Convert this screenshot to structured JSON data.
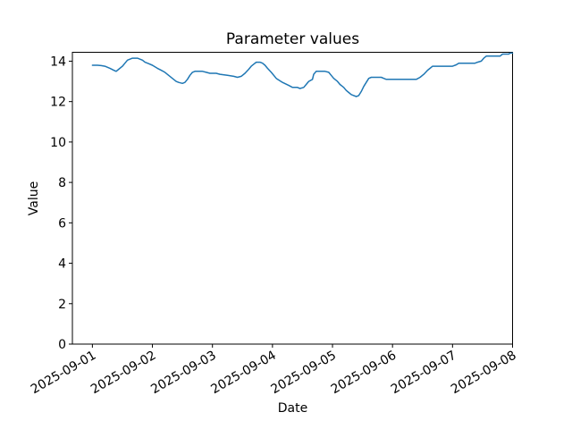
{
  "figure": {
    "title": "Parameter values",
    "xlabel": "Date",
    "ylabel": "Value",
    "background_color": "#ffffff",
    "line_color": "#1f77b4",
    "axis_color": "#000000"
  },
  "chart_data": {
    "type": "line",
    "title": "Parameter values",
    "xlabel": "Date",
    "ylabel": "Value",
    "grid": false,
    "legend": null,
    "x_unit": "hours since 2025-09-01 00:00",
    "xlim_hours": [
      -8,
      168
    ],
    "ylim": [
      0,
      14.44
    ],
    "yticks": [
      0,
      2,
      4,
      6,
      8,
      10,
      12,
      14
    ],
    "xticks": {
      "hours": [
        0,
        24,
        48,
        72,
        96,
        120,
        144,
        168
      ],
      "labels": [
        "2025-09-01",
        "2025-09-02",
        "2025-09-03",
        "2025-09-04",
        "2025-09-05",
        "2025-09-06",
        "2025-09-07",
        "2025-09-08"
      ]
    },
    "series": [
      {
        "name": "Parameter values",
        "color": "#1f77b4",
        "points": [
          [
            0,
            13.8
          ],
          [
            2,
            13.8
          ],
          [
            3.5,
            13.78
          ],
          [
            5,
            13.75
          ],
          [
            7,
            13.65
          ],
          [
            8.5,
            13.55
          ],
          [
            9.5,
            13.5
          ],
          [
            10.5,
            13.6
          ],
          [
            12,
            13.75
          ],
          [
            13,
            13.9
          ],
          [
            14,
            14.05
          ],
          [
            15,
            14.1
          ],
          [
            16,
            14.15
          ],
          [
            18,
            14.15
          ],
          [
            19,
            14.1
          ],
          [
            20,
            14.05
          ],
          [
            21,
            13.95
          ],
          [
            22.5,
            13.88
          ],
          [
            24,
            13.8
          ],
          [
            26,
            13.65
          ],
          [
            27.5,
            13.55
          ],
          [
            29,
            13.45
          ],
          [
            30.5,
            13.3
          ],
          [
            32,
            13.15
          ],
          [
            33.5,
            13.0
          ],
          [
            34.5,
            12.95
          ],
          [
            36,
            12.9
          ],
          [
            37,
            12.95
          ],
          [
            38,
            13.1
          ],
          [
            39,
            13.3
          ],
          [
            40,
            13.45
          ],
          [
            41,
            13.5
          ],
          [
            44,
            13.5
          ],
          [
            45.5,
            13.45
          ],
          [
            47,
            13.4
          ],
          [
            49.5,
            13.4
          ],
          [
            51,
            13.35
          ],
          [
            54,
            13.3
          ],
          [
            56.5,
            13.25
          ],
          [
            58,
            13.2
          ],
          [
            59.5,
            13.25
          ],
          [
            61,
            13.4
          ],
          [
            62.5,
            13.6
          ],
          [
            63.5,
            13.75
          ],
          [
            64.5,
            13.85
          ],
          [
            65.5,
            13.95
          ],
          [
            67,
            13.95
          ],
          [
            68,
            13.9
          ],
          [
            69,
            13.8
          ],
          [
            70,
            13.65
          ],
          [
            71.5,
            13.45
          ],
          [
            73.5,
            13.15
          ],
          [
            76,
            12.95
          ],
          [
            78.5,
            12.8
          ],
          [
            80,
            12.7
          ],
          [
            82,
            12.7
          ],
          [
            83,
            12.65
          ],
          [
            84.5,
            12.7
          ],
          [
            85.5,
            12.85
          ],
          [
            86.5,
            13.0
          ],
          [
            88,
            13.1
          ],
          [
            88.5,
            13.35
          ],
          [
            89.5,
            13.5
          ],
          [
            93,
            13.5
          ],
          [
            94.5,
            13.45
          ],
          [
            95.5,
            13.3
          ],
          [
            96.5,
            13.15
          ],
          [
            98,
            13.0
          ],
          [
            99,
            12.85
          ],
          [
            100.5,
            12.7
          ],
          [
            101.5,
            12.55
          ],
          [
            102.5,
            12.45
          ],
          [
            103.5,
            12.35
          ],
          [
            104.5,
            12.3
          ],
          [
            105.5,
            12.25
          ],
          [
            106.5,
            12.3
          ],
          [
            107.5,
            12.5
          ],
          [
            108.5,
            12.75
          ],
          [
            109.5,
            12.95
          ],
          [
            110.5,
            13.15
          ],
          [
            111.5,
            13.2
          ],
          [
            115.5,
            13.2
          ],
          [
            116.5,
            13.15
          ],
          [
            117.5,
            13.1
          ],
          [
            129.5,
            13.1
          ],
          [
            131,
            13.2
          ],
          [
            132.5,
            13.35
          ],
          [
            134,
            13.55
          ],
          [
            135,
            13.65
          ],
          [
            136,
            13.75
          ],
          [
            144,
            13.75
          ],
          [
            145.5,
            13.82
          ],
          [
            146.5,
            13.9
          ],
          [
            153,
            13.9
          ],
          [
            154,
            13.95
          ],
          [
            155.5,
            14.0
          ],
          [
            156.5,
            14.15
          ],
          [
            157.5,
            14.25
          ],
          [
            163,
            14.25
          ],
          [
            164,
            14.35
          ],
          [
            166.5,
            14.35
          ],
          [
            167,
            14.4
          ],
          [
            168,
            14.4
          ]
        ]
      }
    ]
  }
}
